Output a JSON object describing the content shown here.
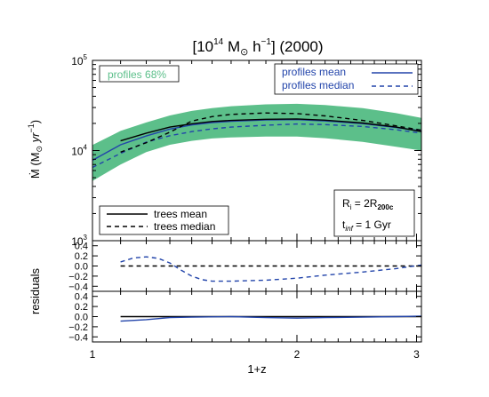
{
  "chart_data": [
    {
      "panel": "main",
      "type": "line",
      "title_parts": {
        "lead": "[10",
        "exp": "14",
        "mid": " M",
        "sym": "⊙",
        "unit": " h",
        "unit_exp": "−1",
        "tail": "] (2000)"
      },
      "xlabel": "1+z",
      "x_scale": "log",
      "xlim": [
        1,
        3.05
      ],
      "x_ticks": [
        {
          "v": 1,
          "label": "1"
        },
        {
          "v": 2,
          "label": "2"
        },
        {
          "v": 3,
          "label": "3"
        }
      ],
      "ylabel_parts": {
        "lead": "Ṁ (M",
        "sym": "⊙",
        "mid": " yr",
        "exp": "−1",
        "tail": ")"
      },
      "y_scale": "log",
      "ylim": [
        1000,
        100000
      ],
      "y_ticks": [
        {
          "v": 1000,
          "base": "10",
          "exp": "3"
        },
        {
          "v": 10000,
          "base": "10",
          "exp": "4"
        },
        {
          "v": 100000,
          "base": "10",
          "exp": "5"
        }
      ],
      "band": {
        "name": "profiles 68%",
        "color": "#5cbf8a",
        "x": [
          1.0,
          1.1,
          1.2,
          1.3,
          1.4,
          1.5,
          1.6,
          1.8,
          2.0,
          2.2,
          2.5,
          2.8,
          3.05
        ],
        "lower": [
          4600,
          7000,
          9600,
          11600,
          12800,
          13600,
          14000,
          14300,
          14300,
          13700,
          12500,
          11000,
          10000
        ],
        "upper": [
          11500,
          16500,
          20500,
          24500,
          27500,
          29500,
          31000,
          32500,
          33000,
          32000,
          29500,
          26000,
          23000
        ]
      },
      "series": [
        {
          "name": "profiles mean",
          "color": "#2244aa",
          "dash": "solid",
          "x": [
            1.0,
            1.1,
            1.2,
            1.3,
            1.4,
            1.5,
            1.6,
            1.8,
            2.0,
            2.2,
            2.5,
            2.8,
            3.05
          ],
          "y": [
            7800,
            11600,
            14500,
            17300,
            19200,
            20400,
            21100,
            21800,
            22000,
            21300,
            19900,
            18000,
            16500
          ]
        },
        {
          "name": "profiles median",
          "color": "#2244aa",
          "dash": "dashed",
          "x": [
            1.0,
            1.1,
            1.2,
            1.3,
            1.4,
            1.5,
            1.6,
            1.8,
            2.0,
            2.2,
            2.5,
            2.8,
            3.05
          ],
          "y": [
            6500,
            9300,
            12400,
            14600,
            16200,
            17400,
            18200,
            19100,
            19700,
            19400,
            18500,
            17000,
            15600
          ]
        },
        {
          "name": "trees mean",
          "color": "#000000",
          "dash": "solid",
          "x": [
            1.1,
            1.2,
            1.3,
            1.4,
            1.5,
            1.6,
            1.8,
            2.0,
            2.2,
            2.5,
            2.8,
            3.05
          ],
          "y": [
            12800,
            15600,
            18200,
            19800,
            21000,
            21600,
            22200,
            22400,
            21700,
            20200,
            18200,
            16200
          ]
        },
        {
          "name": "trees median",
          "color": "#000000",
          "dash": "dashed",
          "x": [
            1.1,
            1.2,
            1.3,
            1.35,
            1.4,
            1.5,
            1.6,
            1.8,
            2.0,
            2.2,
            2.5,
            2.8,
            3.05
          ],
          "y": [
            9600,
            12200,
            16000,
            18500,
            21200,
            23800,
            25200,
            26100,
            25700,
            24200,
            21600,
            18800,
            16800
          ]
        }
      ],
      "legend_band_label": "profiles 68%",
      "legend_top_right": [
        "profiles mean",
        "profiles median"
      ],
      "legend_bottom_left": [
        "trees mean",
        "trees median"
      ],
      "annotation": {
        "ri": {
          "lead": "R",
          "sub": "i",
          "eq": " = 2R",
          "sub2": "200c"
        },
        "tinf": {
          "lead": "t",
          "sub": "inf",
          "eq": " = 1 Gyr"
        }
      }
    },
    {
      "panel": "residuals-median",
      "type": "line",
      "ylabel": "residuals",
      "ylim": [
        -0.5,
        0.5
      ],
      "y_ticks": [
        "0.4",
        "0.2",
        "0.0",
        "−0.2",
        "−0.4"
      ],
      "y_tick_values": [
        0.4,
        0.2,
        0.0,
        -0.2,
        -0.4
      ],
      "series": [
        {
          "name": "trees median",
          "color": "#000000",
          "dash": "dashed",
          "x": [
            1.1,
            3.05
          ],
          "y": [
            0.0,
            0.0
          ]
        },
        {
          "name": "profiles median",
          "color": "#2244aa",
          "dash": "dashed",
          "x": [
            1.1,
            1.15,
            1.2,
            1.25,
            1.3,
            1.35,
            1.4,
            1.45,
            1.5,
            1.6,
            1.8,
            2.0,
            2.2,
            2.5,
            2.8,
            3.05
          ],
          "y": [
            0.08,
            0.16,
            0.18,
            0.15,
            0.06,
            -0.08,
            -0.2,
            -0.27,
            -0.3,
            -0.3,
            -0.28,
            -0.24,
            -0.18,
            -0.12,
            -0.05,
            0.02
          ]
        }
      ]
    },
    {
      "panel": "residuals-mean",
      "type": "line",
      "ylim": [
        -0.5,
        0.5
      ],
      "y_ticks": [
        "0.4",
        "0.2",
        "0.0",
        "−0.2",
        "−0.4"
      ],
      "y_tick_values": [
        0.4,
        0.2,
        0.0,
        -0.2,
        -0.4
      ],
      "series": [
        {
          "name": "trees mean",
          "color": "#000000",
          "dash": "solid",
          "x": [
            1.1,
            3.05
          ],
          "y": [
            0.0,
            0.0
          ]
        },
        {
          "name": "profiles mean",
          "color": "#2244aa",
          "dash": "solid",
          "x": [
            1.1,
            1.2,
            1.3,
            1.4,
            1.6,
            1.8,
            2.0,
            2.2,
            2.5,
            2.8,
            3.05
          ],
          "y": [
            -0.09,
            -0.06,
            -0.02,
            -0.01,
            0.0,
            -0.02,
            -0.03,
            -0.02,
            -0.01,
            0.0,
            0.01
          ]
        }
      ]
    }
  ]
}
